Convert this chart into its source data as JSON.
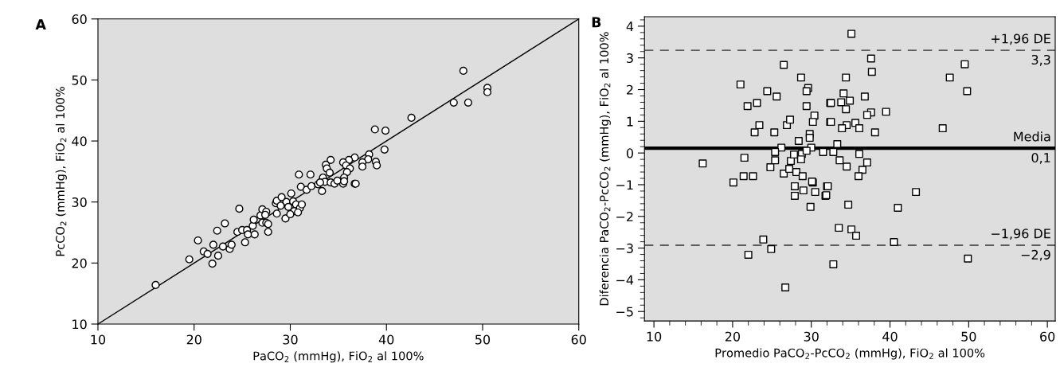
{
  "chart_data": [
    {
      "type": "scatter",
      "xlabel": "PaCO$_{2}$ (mmHg), FiO$_{2}$ al 100%",
      "ylabel": "PcCO$_{2}$ (mmHg), FiO$_{2}$ al 100%",
      "annotations": [
        "A"
      ],
      "xlim": [
        10,
        60
      ],
      "ylim": [
        10,
        60
      ],
      "xticks": [
        10,
        20,
        30,
        40,
        50,
        60
      ],
      "yticks": [
        10,
        20,
        30,
        40,
        50,
        60
      ],
      "marker": "circle",
      "grid": false,
      "series": [
        {
          "type": "line",
          "color": "#000000",
          "x": [
            10,
            60
          ],
          "values": [
            10,
            60
          ],
          "marker": "none"
        },
        {
          "color": "#ffffff",
          "x": [
            42.6,
            38.8,
            39.9,
            39.8,
            38.2,
            38.1,
            38.9,
            39.0,
            37.5,
            37.5,
            36.7,
            36.1,
            35.5,
            35.8,
            36.2,
            35.9,
            34.2,
            33.7,
            33.8,
            34.1,
            30.9,
            32.1,
            33.4,
            35.6,
            36.7,
            48.0,
            50.5,
            50.5,
            48.5,
            47.0,
            16.0,
            19.5,
            20.4,
            21.0,
            21.4,
            22.0,
            21.9,
            22.5,
            22.4,
            23.2,
            23.0,
            23.7,
            23.9,
            24.7,
            24.5,
            25.0,
            25.5,
            25.3,
            25.6,
            26.3,
            26.1,
            26.2,
            26.9,
            27.1,
            27.1,
            27.5,
            27.7,
            27.7,
            27.5,
            27.4,
            28.6,
            28.5,
            28.6,
            29.1,
            29.6,
            30.1,
            30.3,
            29.8,
            30.6,
            31.0,
            30.4,
            29.5,
            30.0,
            30.8,
            31.2,
            29.0,
            31.1,
            31.7,
            32.2,
            32.9,
            33.3,
            33.6,
            34.2,
            34.6,
            35.5,
            34.9,
            36.8,
            35.6,
            33.1
          ],
          "values": [
            43.8,
            41.9,
            41.7,
            38.6,
            37.8,
            37.0,
            36.6,
            36.0,
            36.5,
            35.8,
            37.3,
            36.9,
            36.5,
            36.0,
            35.5,
            34.9,
            36.9,
            36.1,
            35.5,
            34.8,
            34.5,
            34.5,
            34.0,
            34.0,
            33.0,
            51.5,
            48.7,
            48.0,
            46.3,
            46.3,
            16.4,
            20.6,
            23.7,
            21.9,
            21.5,
            23.0,
            19.9,
            21.2,
            25.3,
            26.5,
            22.7,
            22.3,
            23.0,
            28.9,
            25.1,
            25.4,
            25.4,
            23.4,
            24.7,
            24.7,
            26.1,
            27.1,
            27.8,
            28.8,
            26.6,
            26.6,
            26.4,
            25.1,
            28.4,
            27.9,
            28.1,
            29.8,
            30.2,
            30.8,
            30.0,
            31.4,
            30.1,
            29.2,
            29.6,
            29.0,
            28.5,
            27.3,
            28.0,
            28.3,
            29.6,
            29.4,
            32.5,
            32.0,
            32.6,
            32.9,
            31.8,
            33.3,
            33.2,
            33.0,
            33.0,
            33.5,
            33.0,
            33.4,
            33.2
          ]
        }
      ]
    },
    {
      "type": "scatter",
      "xlabel": "Promedio PaCO$_{2}$-PcCO$_{2}$ (mmHg), FiO$_{2}$ al 100%",
      "ylabel": "Diferencia PaCO$_{2}$-PcCO$_{2}$ (mmHg), FiO$_{2}$ al 100%",
      "annotations": [
        "B"
      ],
      "xlim": [
        8.8,
        61
      ],
      "ylim": [
        -5.3,
        4.3
      ],
      "xticks": [
        10,
        20,
        30,
        40,
        50,
        60
      ],
      "yticks": [
        -5,
        -4,
        -3,
        -2,
        -1,
        0,
        1,
        2,
        3,
        4
      ],
      "marker": "square",
      "grid": false,
      "ref_lines": [
        {
          "axis": "y",
          "value": 3.24,
          "label": "+1,96 DE\n3,3",
          "line_style": "dashed",
          "color": "#333333"
        },
        {
          "axis": "y",
          "value": 0.15,
          "label": "Media\n0,1",
          "line_style": "solid",
          "color": "#000000"
        },
        {
          "axis": "y",
          "value": -2.91,
          "label": "−1,96 DE\n−2,9",
          "line_style": "dashed",
          "color": "#333333"
        }
      ],
      "series": [
        {
          "color": "#ffffff",
          "x": [
            16.2,
            21.0,
            21.9,
            23.1,
            22.8,
            23.4,
            21.5,
            21.4,
            22.6,
            20.1,
            24.4,
            25.6,
            26.5,
            28.7,
            29.6,
            29.4,
            29.4,
            30.4,
            30.2,
            26.9,
            27.3,
            25.3,
            28.4,
            29.8,
            29.8,
            26.2,
            25.4,
            30.0,
            25.4,
            24.8,
            26.5,
            27.2,
            27.4,
            27.8,
            28.8,
            28.7,
            29.4,
            28.1,
            28.9,
            30.2,
            27.9,
            31.5,
            32.4,
            32.4,
            22.0,
            23.9,
            24.9,
            26.7,
            29.9,
            27.9,
            29.0,
            30.5,
            31.8,
            32.0,
            30.1,
            35.1,
            37.6,
            37.7,
            34.4,
            49.5,
            47.6,
            49.8,
            34.1,
            33.8,
            34.9,
            36.8,
            34.4,
            32.5,
            37.6,
            37.1,
            39.5,
            32.5,
            34.5,
            33.9,
            35.6,
            36.1,
            38.1,
            46.7,
            33.3,
            32.8,
            36.1,
            33.6,
            34.5,
            37.1,
            36.5,
            36.0,
            32.1,
            31.9,
            43.3,
            34.7,
            41.0,
            33.5,
            35.1,
            35.7,
            40.5,
            49.9,
            32.8
          ],
          "values": [
            -0.33,
            2.16,
            1.48,
            1.58,
            0.65,
            0.88,
            -0.15,
            -0.73,
            -0.73,
            -0.93,
            1.95,
            1.78,
            2.78,
            2.38,
            2.05,
            1.95,
            1.48,
            1.18,
            0.98,
            0.88,
            1.05,
            0.65,
            0.38,
            0.6,
            0.48,
            0.17,
            0.03,
            0.17,
            -0.23,
            -0.45,
            -0.65,
            -0.5,
            -0.25,
            -0.05,
            -0.03,
            -0.2,
            0.07,
            -0.6,
            -0.73,
            -0.93,
            -1.05,
            0.03,
            1.58,
            0.98,
            -3.21,
            -2.73,
            -3.03,
            -4.24,
            -1.7,
            -1.35,
            -1.18,
            -1.23,
            -1.35,
            -1.05,
            -0.9,
            3.76,
            2.98,
            2.56,
            2.38,
            2.8,
            2.38,
            1.95,
            1.88,
            1.6,
            1.65,
            1.78,
            1.38,
            1.58,
            1.28,
            1.2,
            1.3,
            0.98,
            0.88,
            0.78,
            0.95,
            0.78,
            0.65,
            0.78,
            0.28,
            0.03,
            -0.03,
            -0.23,
            -0.43,
            -0.3,
            -0.53,
            -0.73,
            -1.05,
            -1.33,
            -1.23,
            -1.63,
            -1.73,
            -2.36,
            -2.41,
            -2.61,
            -2.81,
            -3.33,
            -3.51
          ]
        }
      ]
    }
  ]
}
